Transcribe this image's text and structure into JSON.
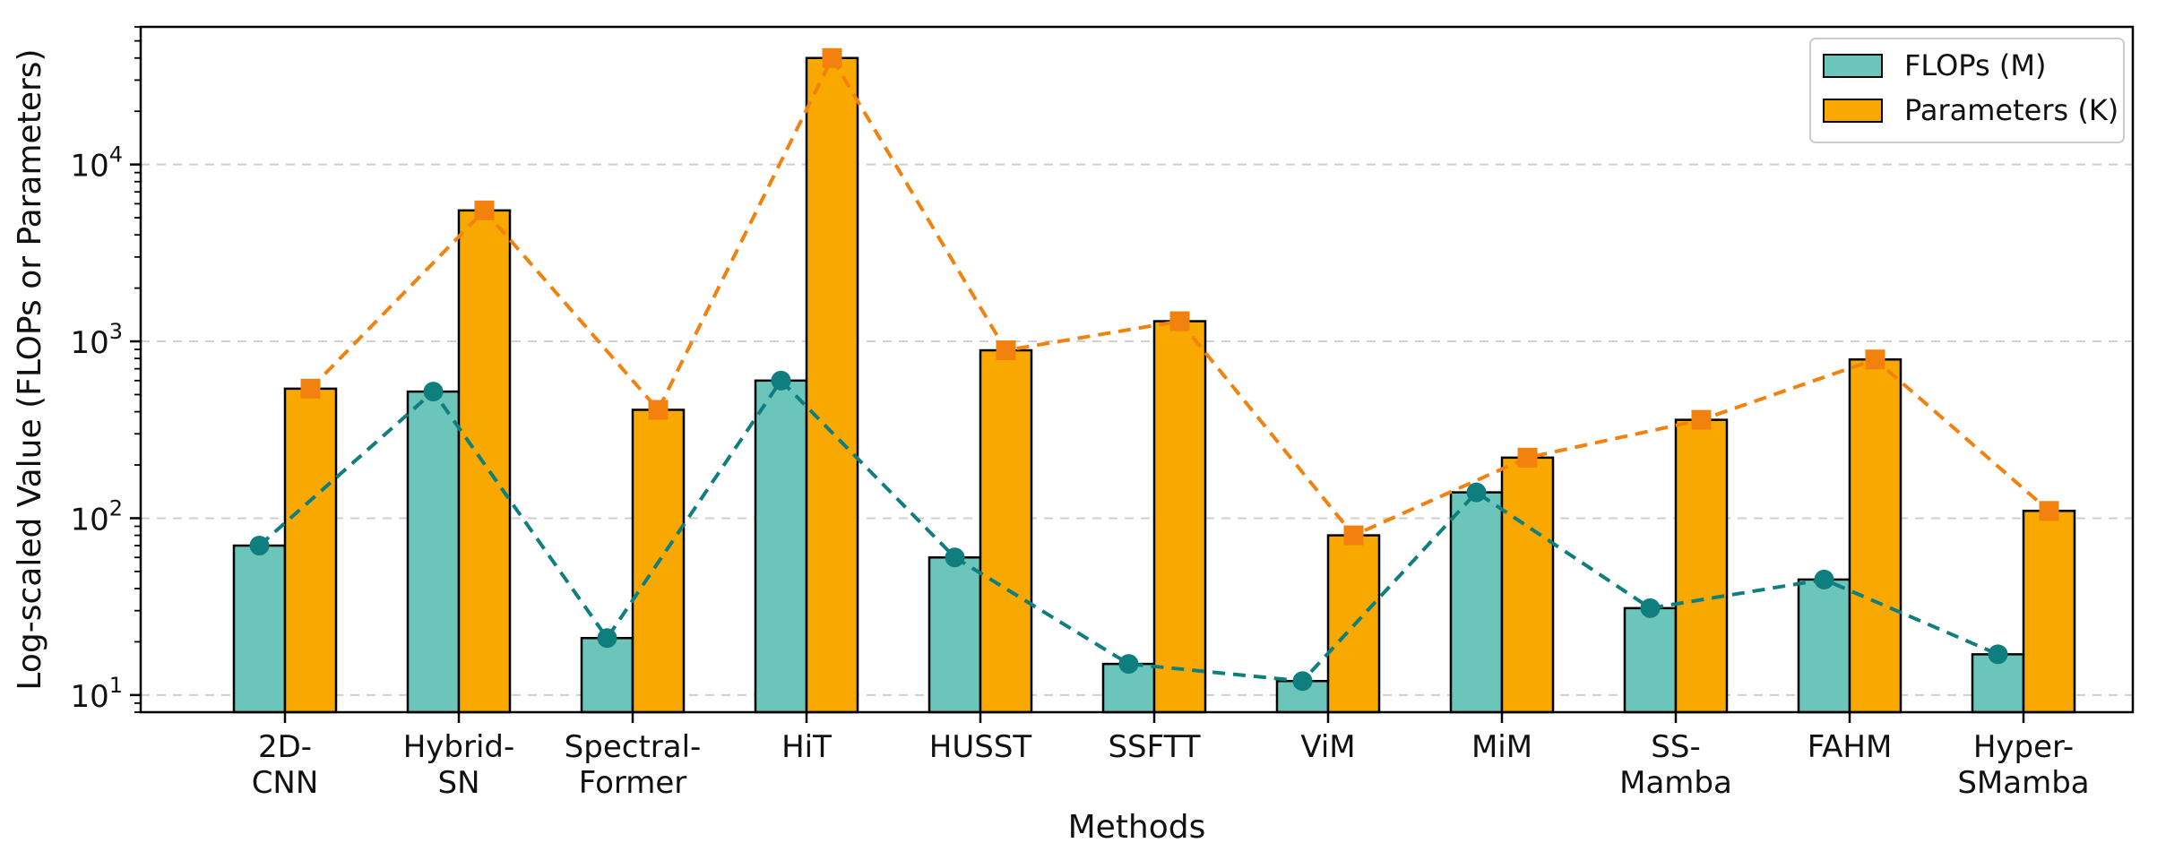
{
  "chart_data": {
    "type": "bar",
    "categories": [
      "2D-\nCNN",
      "Hybrid-\nSN",
      "Spectral-\nFormer",
      "HiT",
      "HUSST",
      "SSFTT",
      "ViM",
      "MiM",
      "SS-\nMamba",
      "FAHM",
      "Hyper-\nSMamba"
    ],
    "series": [
      {
        "name": "FLOPs (M)",
        "values": [
          70,
          520,
          21,
          600,
          60,
          15,
          12,
          140,
          31,
          45,
          17
        ],
        "bar_color": "#6cc5bb",
        "line_color": "#0e7f7e",
        "marker": "circle"
      },
      {
        "name": "Parameters (K)",
        "values": [
          540,
          5500,
          410,
          40000,
          890,
          1300,
          80,
          220,
          360,
          790,
          110
        ],
        "bar_color": "#f9a800",
        "line_color": "#f2820d",
        "marker": "square"
      }
    ],
    "xlabel": "Methods",
    "ylabel": "Log-scaled Value (FLOPs or Parameters)",
    "yscale": "log",
    "ylim": [
      8,
      60000
    ],
    "yticks": [
      {
        "value": 10,
        "base": "10",
        "exp": "1"
      },
      {
        "value": 100,
        "base": "10",
        "exp": "2"
      },
      {
        "value": 1000,
        "base": "10",
        "exp": "3"
      },
      {
        "value": 10000,
        "base": "10",
        "exp": "4"
      }
    ],
    "grid": "horizontal dashed",
    "legend_position": "top-right",
    "bar_edge_color": "#000000"
  }
}
